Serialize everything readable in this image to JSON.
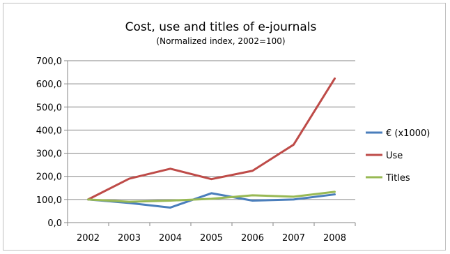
{
  "chart_data": {
    "type": "line",
    "title": "Cost, use and titles of e-journals",
    "subtitle": "(Normalized index, 2002=100)",
    "xlabel": "",
    "ylabel": "",
    "categories": [
      "2002",
      "2003",
      "2004",
      "2005",
      "2006",
      "2007",
      "2008"
    ],
    "y_ticks": [
      "0,0",
      "100,0",
      "200,0",
      "300,0",
      "400,0",
      "500,0",
      "600,0",
      "700,0"
    ],
    "ylim": [
      0,
      700
    ],
    "grid": true,
    "legend_position": "right",
    "series": [
      {
        "name": "€ (x1000)",
        "color": "#4a7ebb",
        "values": [
          100,
          85,
          65,
          127,
          95,
          100,
          122
        ]
      },
      {
        "name": "Use",
        "color": "#be4b48",
        "values": [
          100,
          190,
          233,
          188,
          224,
          337,
          623
        ]
      },
      {
        "name": "Titles",
        "color": "#98b954",
        "values": [
          100,
          90,
          95,
          103,
          118,
          112,
          133
        ]
      }
    ]
  }
}
